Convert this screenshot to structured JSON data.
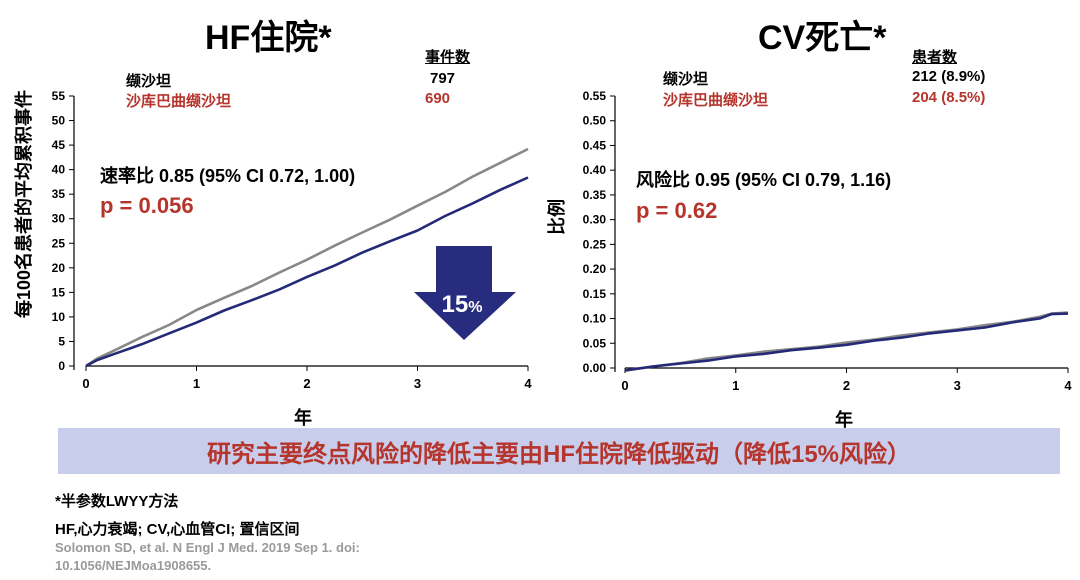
{
  "colors": {
    "accent_red": "#b5342b",
    "series_gray": "#888888",
    "series_navy": "#252a78",
    "arrow_navy": "#272c7e",
    "banner_bg": "#c8cdeb",
    "citation_gray": "#9a9a9a"
  },
  "left_panel": {
    "title": "HF住院*",
    "legend_header": "事件数",
    "legend": [
      {
        "name": "缬沙坦",
        "value": "797"
      },
      {
        "name": "沙库巴曲缬沙坦",
        "value": "690"
      }
    ],
    "ratio_text": "速率比 0.85 (95% CI 0.72, 1.00)",
    "p_text": "p = 0.056",
    "arrow_label": "15",
    "arrow_pct": "%"
  },
  "right_panel": {
    "title": "CV死亡*",
    "legend_header": "患者数",
    "legend": [
      {
        "name": "缬沙坦",
        "value": "212 (8.9%)"
      },
      {
        "name": "沙库巴曲缬沙坦",
        "value": "204 (8.5%)"
      }
    ],
    "ratio_text": "风险比 0.95 (95% CI 0.79, 1.16)",
    "p_text": "p = 0.62"
  },
  "banner_text": "研究主要终点风险的降低主要由HF住院降低驱动（降低15%风险）",
  "footnotes": {
    "method": "*半参数LWYY方法",
    "abbrev": "HF,心力衰竭; CV,心血管CI; 置信区间",
    "citation_line1": "Solomon SD, et al. N Engl J Med. 2019 Sep 1. doi:",
    "citation_line2": "10.1056/NEJMoa1908655."
  },
  "chart_data": [
    {
      "type": "line",
      "title": "HF住院*",
      "xlabel": "年",
      "ylabel": "每100名患者的平均累积事件",
      "xlim": [
        0,
        4
      ],
      "ylim": [
        0,
        55
      ],
      "xticks": [
        "0",
        "1",
        "2",
        "3",
        "4"
      ],
      "yticks": [
        "0",
        "5",
        "10",
        "15",
        "20",
        "25",
        "30",
        "35",
        "40",
        "45",
        "50",
        "55"
      ],
      "grid": false,
      "series": [
        {
          "name": "缬沙坦",
          "color": "#888888",
          "x": [
            0,
            0.1,
            0.25,
            0.5,
            0.75,
            1.0,
            1.25,
            1.5,
            1.75,
            2.0,
            2.25,
            2.5,
            2.75,
            3.0,
            3.25,
            3.5,
            3.75,
            4.0
          ],
          "y": [
            0,
            1.5,
            3.2,
            5.8,
            8.4,
            11.3,
            13.9,
            16.4,
            19.0,
            21.7,
            24.4,
            27.2,
            29.9,
            32.6,
            35.5,
            38.5,
            41.4,
            44.2
          ]
        },
        {
          "name": "沙库巴曲缬沙坦",
          "color": "#252a78",
          "x": [
            0,
            0.1,
            0.25,
            0.5,
            0.75,
            1.0,
            1.25,
            1.5,
            1.75,
            2.0,
            2.25,
            2.5,
            2.75,
            3.0,
            3.25,
            3.5,
            3.75,
            4.0
          ],
          "y": [
            0,
            1.1,
            2.4,
            4.5,
            6.6,
            8.9,
            11.2,
            13.4,
            15.7,
            18.1,
            20.5,
            23.0,
            25.4,
            27.7,
            30.5,
            33.2,
            35.8,
            38.4
          ]
        }
      ]
    },
    {
      "type": "line",
      "title": "CV死亡*",
      "xlabel": "年",
      "ylabel": "比例",
      "xlim": [
        0,
        4
      ],
      "ylim": [
        0,
        0.55
      ],
      "xticks": [
        "0",
        "1",
        "2",
        "3",
        "4"
      ],
      "yticks": [
        "0.00",
        "0.05",
        "0.10",
        "0.15",
        "0.20",
        "0.25",
        "0.30",
        "0.35",
        "0.40",
        "0.45",
        "0.50",
        "0.55"
      ],
      "grid": false,
      "series": [
        {
          "name": "缬沙坦",
          "color": "#888888",
          "x": [
            0,
            0.25,
            0.5,
            0.75,
            1.0,
            1.25,
            1.5,
            1.75,
            2.0,
            2.25,
            2.5,
            2.75,
            3.0,
            3.25,
            3.5,
            3.75,
            3.85,
            4.0
          ],
          "y": [
            -0.005,
            0.003,
            0.011,
            0.019,
            0.026,
            0.032,
            0.038,
            0.044,
            0.051,
            0.058,
            0.065,
            0.072,
            0.079,
            0.086,
            0.094,
            0.103,
            0.11,
            0.112
          ]
        },
        {
          "name": "沙库巴曲缬沙坦",
          "color": "#252a78",
          "x": [
            0,
            0.25,
            0.5,
            0.75,
            1.0,
            1.25,
            1.5,
            1.75,
            2.0,
            2.25,
            2.5,
            2.75,
            3.0,
            3.25,
            3.5,
            3.75,
            3.85,
            4.0
          ],
          "y": [
            -0.005,
            0.002,
            0.009,
            0.016,
            0.023,
            0.029,
            0.035,
            0.041,
            0.048,
            0.055,
            0.062,
            0.069,
            0.076,
            0.083,
            0.092,
            0.101,
            0.108,
            0.11
          ]
        }
      ]
    }
  ]
}
